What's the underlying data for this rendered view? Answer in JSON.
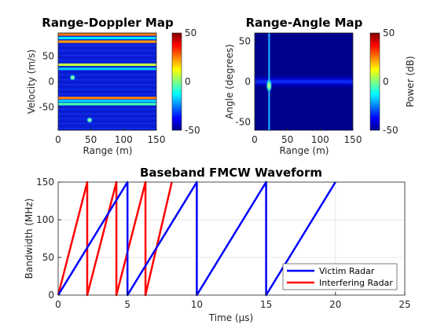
{
  "chart_data": [
    {
      "type": "heatmap",
      "title": "Range-Doppler Map",
      "xlabel": "Range (m)",
      "ylabel": "Velocity (m/s)",
      "xlim": [
        0,
        150
      ],
      "ylim": [
        -95,
        95
      ],
      "xticks": [
        "0",
        "50",
        "100",
        "150"
      ],
      "yticks": [
        "-50",
        "0",
        "50"
      ],
      "colorbar": {
        "ticks": [
          "50",
          "0",
          "-50"
        ],
        "range": [
          -50,
          50
        ]
      },
      "targets": [
        {
          "range": 22,
          "velocity": 8
        },
        {
          "range": 48,
          "velocity": -75
        }
      ],
      "interference_bands_velocity": [
        92,
        85,
        78,
        33,
        25,
        -32,
        -38,
        -44
      ]
    },
    {
      "type": "heatmap",
      "title": "Range-Angle Map",
      "xlabel": "Range (m)",
      "ylabel": "Angle (degrees)",
      "xlim": [
        0,
        150
      ],
      "ylim": [
        -60,
        60
      ],
      "xticks": [
        "0",
        "50",
        "100",
        "150"
      ],
      "yticks": [
        "-50",
        "0",
        "50"
      ],
      "colorbar": {
        "ticks": [
          "50",
          "0",
          "-50"
        ],
        "range": [
          -50,
          50
        ],
        "label": "Power (dB)"
      },
      "targets": [
        {
          "range": 22,
          "angle": -5
        }
      ],
      "interference_line_range": 22
    },
    {
      "type": "line",
      "title": "Baseband FMCW Waveform",
      "xlabel": "Time (μs)",
      "ylabel": "Bandwidth (MHz)",
      "xlim": [
        0,
        25
      ],
      "ylim": [
        0,
        150
      ],
      "xticks": [
        "0",
        "5",
        "10",
        "15",
        "20",
        "25"
      ],
      "yticks": [
        "0",
        "50",
        "100",
        "150"
      ],
      "grid": true,
      "legend_position": "bottom-right",
      "series": [
        {
          "name": "Victim Radar",
          "color": "#0000ff",
          "x": [
            0,
            5,
            5,
            10,
            10,
            15,
            15,
            20
          ],
          "y": [
            0,
            150,
            0,
            150,
            0,
            150,
            0,
            150
          ]
        },
        {
          "name": "Interfering Radar",
          "color": "#ff0000",
          "x": [
            0,
            2.1,
            2.1,
            4.2,
            4.2,
            6.3,
            6.3,
            8.2
          ],
          "y": [
            0,
            150,
            0,
            150,
            0,
            150,
            0,
            150
          ]
        }
      ]
    }
  ]
}
